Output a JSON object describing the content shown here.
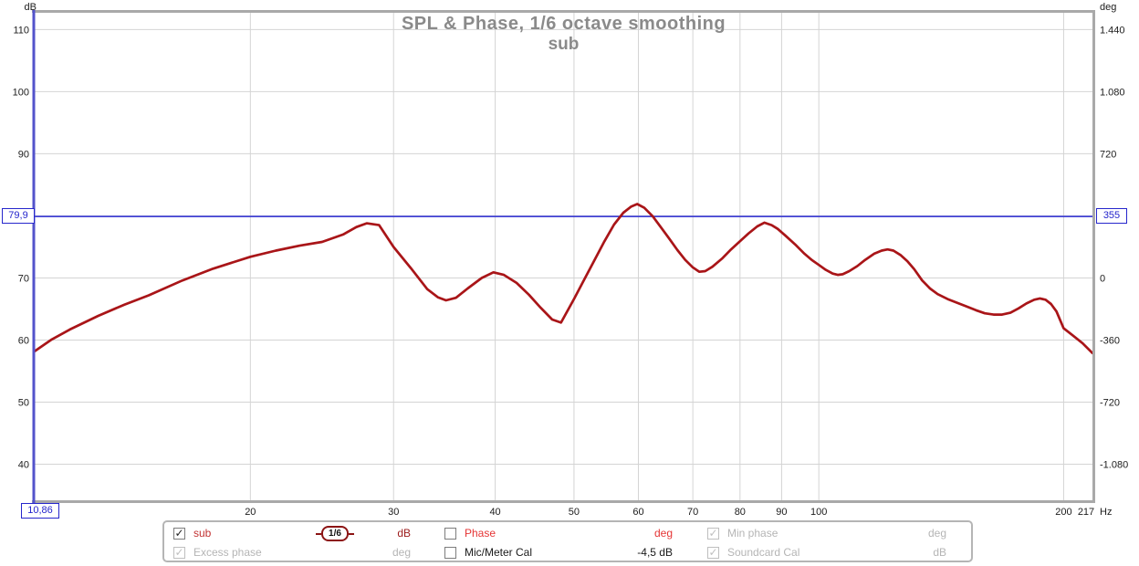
{
  "icons": {
    "checkmark": "✓"
  },
  "chart_data": {
    "type": "line",
    "title": "SPL & Phase, 1/6 octave smoothing",
    "subtitle": "sub",
    "axes": {
      "x": {
        "unit": "Hz",
        "scale": "log",
        "min": 10.86,
        "max": 217,
        "ticks": [
          20,
          30,
          40,
          50,
          60,
          70,
          80,
          90,
          100,
          200
        ],
        "end_tick_label": "217"
      },
      "y_left": {
        "unit": "dB",
        "min": 34.2,
        "max": 112.7,
        "ticks": [
          110,
          100,
          90,
          80,
          70,
          60,
          50,
          40
        ],
        "hidden_labels": [
          80
        ]
      },
      "y_right": {
        "unit": "deg",
        "ticks": [
          {
            "label": "1.440",
            "db": 110
          },
          {
            "label": "1.080",
            "db": 100
          },
          {
            "label": "720",
            "db": 90
          },
          {
            "label": "0",
            "db": 70
          },
          {
            "label": "-360",
            "db": 60
          },
          {
            "label": "-720",
            "db": 50
          },
          {
            "label": "-1.080",
            "db": 40
          }
        ]
      }
    },
    "cursor": {
      "freq": 10.86,
      "freq_label": "10,86",
      "db": 79.9,
      "db_label": "79,9",
      "deg_label": "355"
    },
    "grid": true,
    "legend_position": "bottom",
    "colors": {
      "grid": "#d4d4d4",
      "frame": "#a9a9a9",
      "cursor": "#2a2ad2",
      "left_border": "#5353cb",
      "title": "#8a8a8a",
      "tick_text": "#1c1c1c"
    },
    "series": [
      {
        "name": "sub",
        "color": "#a91518",
        "width": 2.7,
        "points": [
          [
            10.86,
            58.2
          ],
          [
            11.4,
            60.1
          ],
          [
            12,
            61.7
          ],
          [
            13,
            63.9
          ],
          [
            14,
            65.7
          ],
          [
            15,
            67.2
          ],
          [
            16.5,
            69.6
          ],
          [
            18,
            71.5
          ],
          [
            20,
            73.4
          ],
          [
            21.5,
            74.4
          ],
          [
            23,
            75.2
          ],
          [
            24.5,
            75.8
          ],
          [
            26,
            77.0
          ],
          [
            27,
            78.2
          ],
          [
            27.8,
            78.8
          ],
          [
            28.8,
            78.5
          ],
          [
            30,
            75.0
          ],
          [
            31.5,
            71.6
          ],
          [
            33,
            68.2
          ],
          [
            34,
            66.9
          ],
          [
            34.8,
            66.4
          ],
          [
            35.8,
            66.8
          ],
          [
            37,
            68.3
          ],
          [
            38.5,
            70.0
          ],
          [
            39.8,
            70.9
          ],
          [
            41,
            70.5
          ],
          [
            42.5,
            69.2
          ],
          [
            44,
            67.3
          ],
          [
            45.5,
            65.2
          ],
          [
            47,
            63.3
          ],
          [
            48.2,
            62.8
          ],
          [
            50,
            66.6
          ],
          [
            51.5,
            69.8
          ],
          [
            53,
            72.9
          ],
          [
            54.5,
            75.9
          ],
          [
            56,
            78.6
          ],
          [
            57.5,
            80.5
          ],
          [
            58.8,
            81.5
          ],
          [
            59.8,
            81.9
          ],
          [
            61,
            81.3
          ],
          [
            62.5,
            79.9
          ],
          [
            64,
            78.1
          ],
          [
            65.5,
            76.3
          ],
          [
            67,
            74.5
          ],
          [
            68.5,
            72.9
          ],
          [
            70,
            71.7
          ],
          [
            71.3,
            71.0
          ],
          [
            72.5,
            71.1
          ],
          [
            74,
            71.8
          ],
          [
            76,
            73.1
          ],
          [
            78,
            74.6
          ],
          [
            80,
            75.9
          ],
          [
            82,
            77.2
          ],
          [
            84,
            78.3
          ],
          [
            85.7,
            78.9
          ],
          [
            87.5,
            78.5
          ],
          [
            89,
            77.9
          ],
          [
            91,
            76.8
          ],
          [
            93.5,
            75.4
          ],
          [
            96,
            73.9
          ],
          [
            98,
            72.9
          ],
          [
            100,
            72.1
          ],
          [
            102,
            71.3
          ],
          [
            104,
            70.7
          ],
          [
            105.5,
            70.5
          ],
          [
            107,
            70.6
          ],
          [
            109,
            71.1
          ],
          [
            111.5,
            71.9
          ],
          [
            114,
            72.9
          ],
          [
            117,
            73.9
          ],
          [
            119.5,
            74.4
          ],
          [
            121.5,
            74.6
          ],
          [
            123.5,
            74.4
          ],
          [
            126,
            73.7
          ],
          [
            128.5,
            72.7
          ],
          [
            131,
            71.4
          ],
          [
            134,
            69.6
          ],
          [
            137,
            68.3
          ],
          [
            140,
            67.4
          ],
          [
            144,
            66.6
          ],
          [
            148,
            66.0
          ],
          [
            152,
            65.4
          ],
          [
            156,
            64.8
          ],
          [
            160,
            64.3
          ],
          [
            164,
            64.1
          ],
          [
            168,
            64.1
          ],
          [
            172,
            64.4
          ],
          [
            176,
            65.1
          ],
          [
            180,
            65.9
          ],
          [
            184,
            66.5
          ],
          [
            187,
            66.7
          ],
          [
            190,
            66.5
          ],
          [
            193,
            65.8
          ],
          [
            196,
            64.6
          ],
          [
            200,
            61.9
          ],
          [
            205,
            60.8
          ],
          [
            211,
            59.5
          ],
          [
            217,
            57.9
          ]
        ]
      }
    ]
  },
  "legend": {
    "row1": {
      "sub_label": "sub",
      "smoothing_badge": "1/6",
      "spl_unit": "dB",
      "phase_label": "Phase",
      "phase_unit": "deg",
      "min_phase_label": "Min phase",
      "min_phase_unit": "deg"
    },
    "row2": {
      "excess_phase_label": "Excess phase",
      "excess_phase_unit": "deg",
      "mic_cal_label": "Mic/Meter Cal",
      "mic_cal_value": "-4,5 dB",
      "soundcard_cal_label": "Soundcard Cal",
      "soundcard_unit": "dB"
    }
  }
}
